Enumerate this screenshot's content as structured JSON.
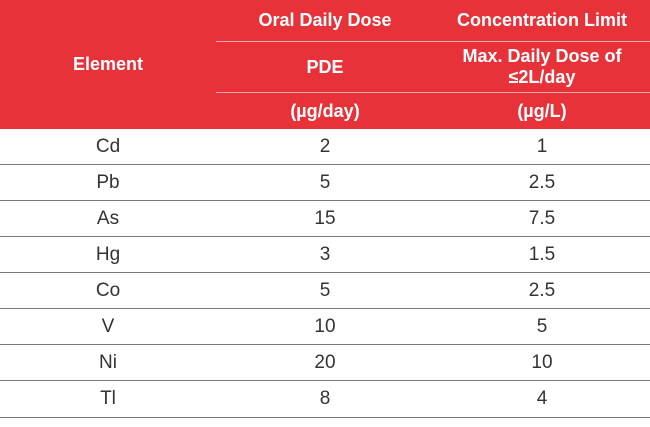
{
  "table": {
    "headers": {
      "element": "Element",
      "oral_daily_dose": "Oral Daily Dose",
      "concentration_limit": "Concentration Limit",
      "pde": "PDE",
      "max_daily_dose_line1": "Max. Daily Dose of",
      "max_daily_dose_line2": "≤2L/day",
      "unit_pde": "(µg/day)",
      "unit_conc": "(µg/L)"
    },
    "rows": [
      {
        "element": "Cd",
        "pde": "2",
        "limit": "1"
      },
      {
        "element": "Pb",
        "pde": "5",
        "limit": "2.5"
      },
      {
        "element": "As",
        "pde": "15",
        "limit": "7.5"
      },
      {
        "element": "Hg",
        "pde": "3",
        "limit": "1.5"
      },
      {
        "element": "Co",
        "pde": "5",
        "limit": "2.5"
      },
      {
        "element": "V",
        "pde": "10",
        "limit": "5"
      },
      {
        "element": "Ni",
        "pde": "20",
        "limit": "10"
      },
      {
        "element": "Tl",
        "pde": "8",
        "limit": "4"
      }
    ],
    "colors": {
      "header_bg": "#e8323a",
      "header_text": "#ffffff",
      "body_text": "#333333",
      "row_border": "#777777"
    }
  }
}
